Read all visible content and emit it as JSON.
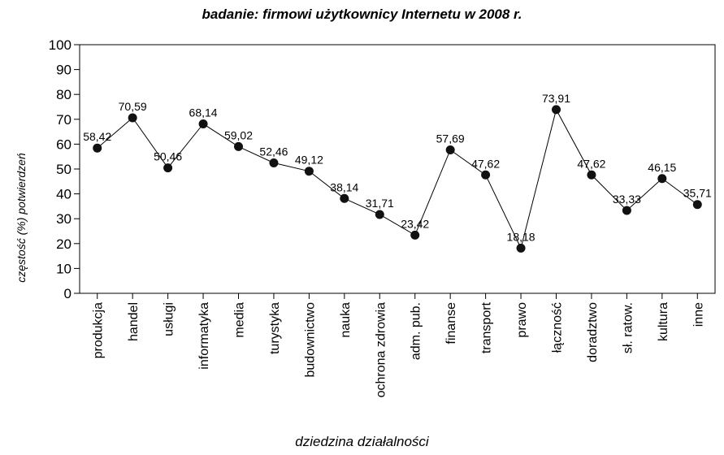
{
  "chart_data": {
    "type": "line",
    "title": "badanie: firmowi użytkownicy Internetu w 2008 r.",
    "xlabel": "dziedzina działalności",
    "ylabel": "częstość (%) potwierdzeń",
    "ylim": [
      0,
      100
    ],
    "yticks": [
      0,
      10,
      20,
      30,
      40,
      50,
      60,
      70,
      80,
      90,
      100
    ],
    "grid": false,
    "categories": [
      "produkcja",
      "handel",
      "usługi",
      "informatyka",
      "media",
      "turystyka",
      "budownictwo",
      "nauka",
      "ochrona zdrowia",
      "adm. pub.",
      "finanse",
      "transport",
      "prawo",
      "łączność",
      "doradztwo",
      "sł. ratow.",
      "kultura",
      "inne"
    ],
    "series": [
      {
        "values": [
          58.42,
          70.59,
          50.46,
          68.14,
          59.02,
          52.46,
          49.12,
          38.14,
          31.71,
          23.42,
          57.69,
          47.62,
          18.18,
          73.91,
          47.62,
          33.33,
          46.15,
          35.71
        ],
        "data_labels": [
          "58,42",
          "70,59",
          "50,46",
          "68,14",
          "59,02",
          "52,46",
          "49,12",
          "38,14",
          "31,71",
          "23,42",
          "57,69",
          "47,62",
          "18,18",
          "73,91",
          "47,62",
          "33,33",
          "46,15",
          "35,71"
        ]
      }
    ]
  }
}
